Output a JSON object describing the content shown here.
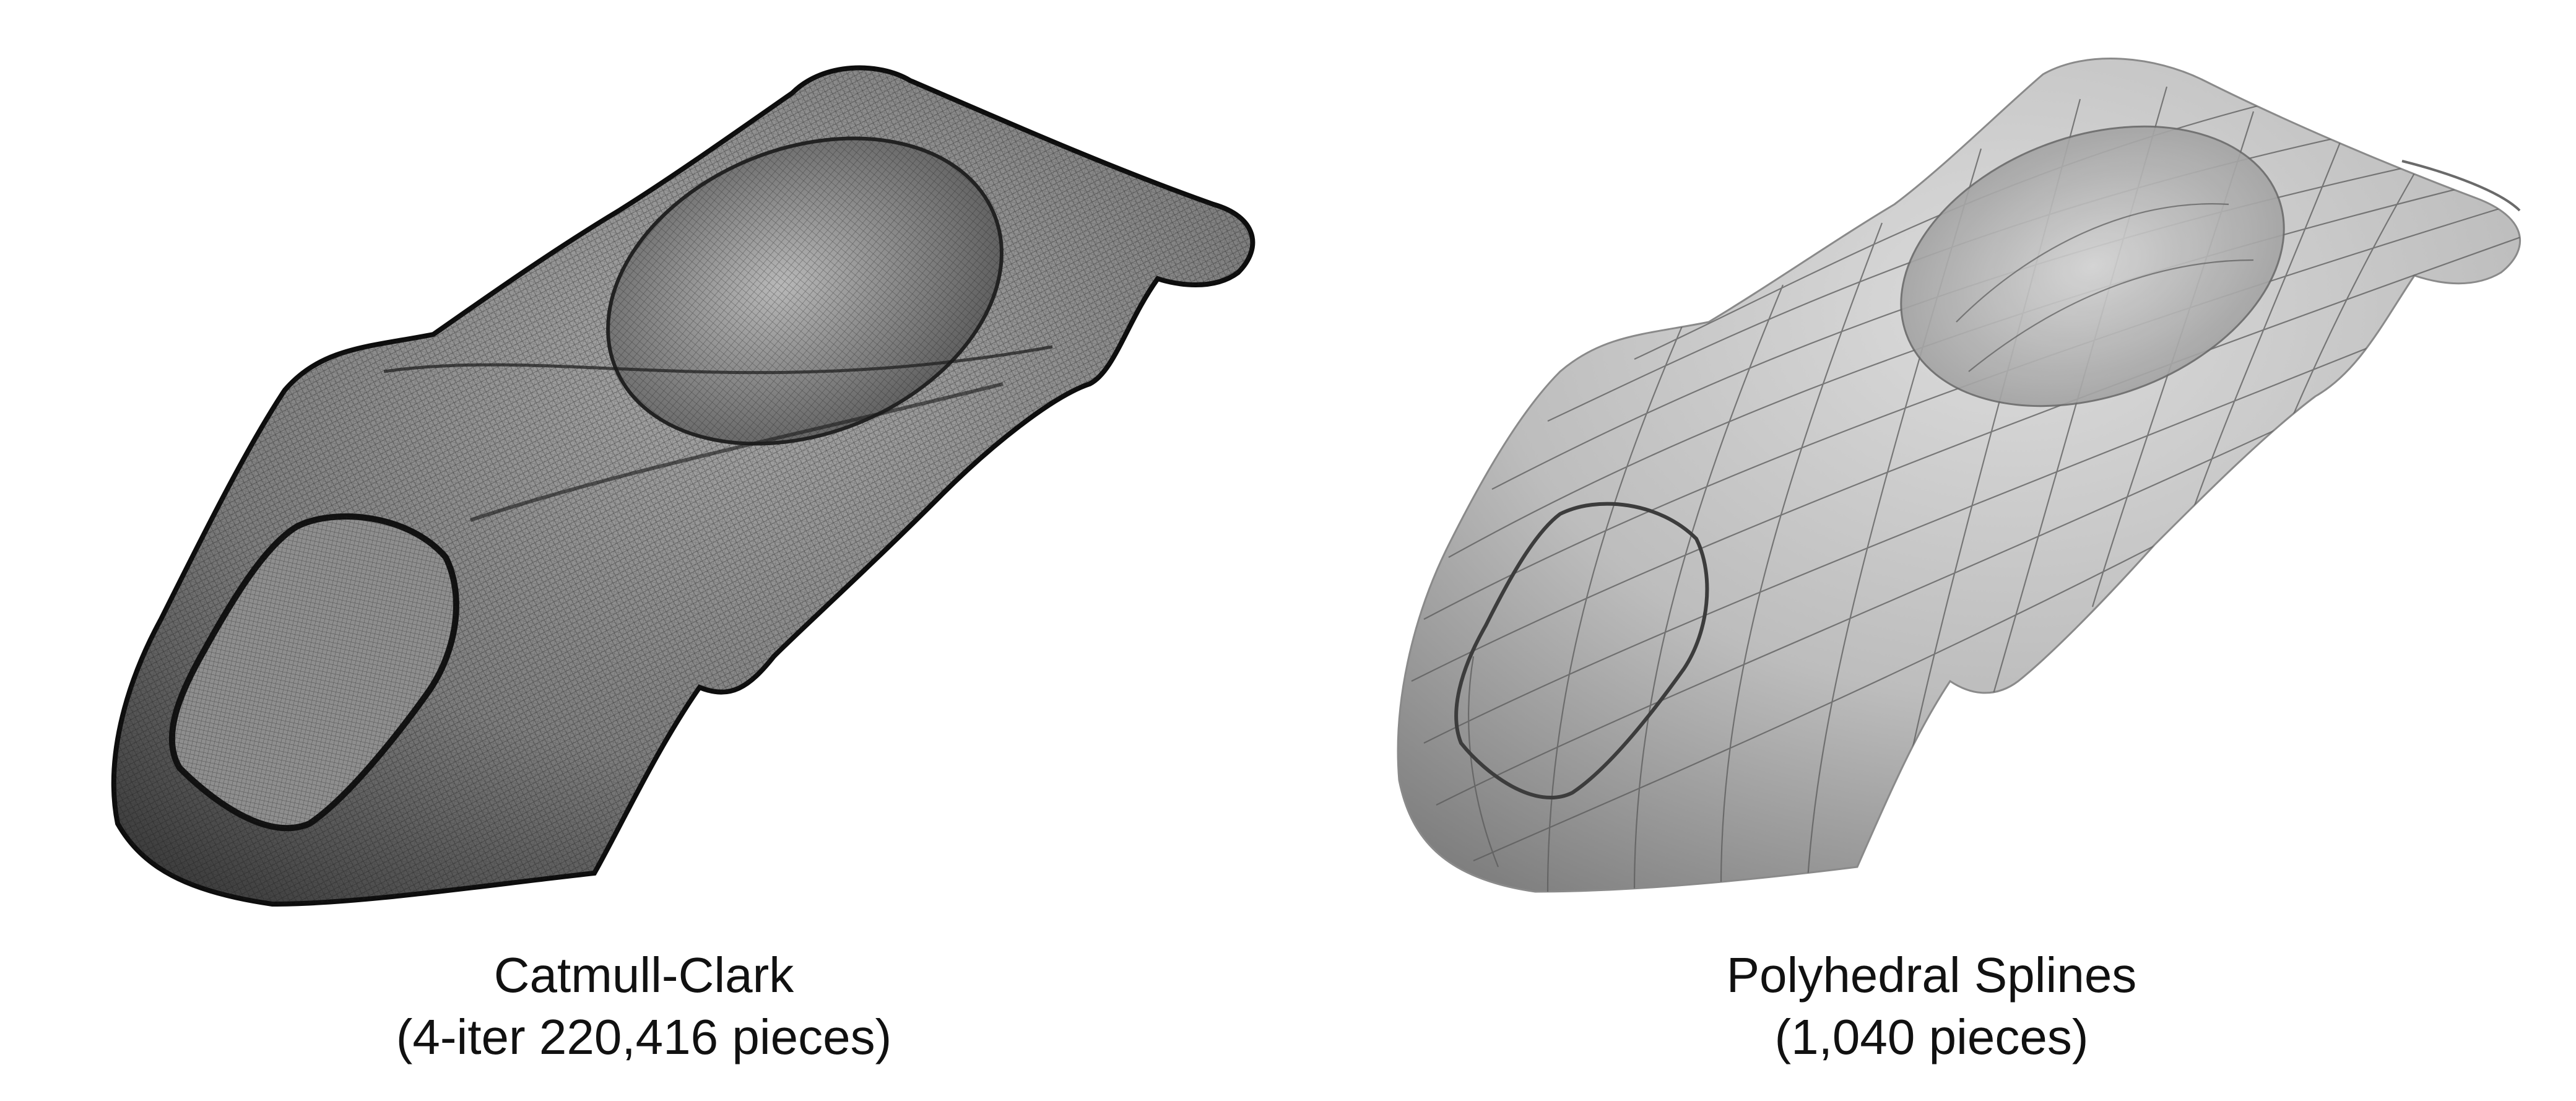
{
  "figure": {
    "left": {
      "title": "Catmull-Clark",
      "subtitle": "(4-iter 220,416 pieces)",
      "render_style": "dense-wireframe",
      "colors": {
        "surface": "#8a8a8a",
        "mesh": "#1a1a1a"
      }
    },
    "right": {
      "title": "Polyhedral Splines",
      "subtitle": "(1,040 pieces)",
      "render_style": "smooth-shaded-patch-grid",
      "colors": {
        "surface": "#c4c4c4",
        "patch_lines": "#5a5a5a"
      }
    }
  }
}
